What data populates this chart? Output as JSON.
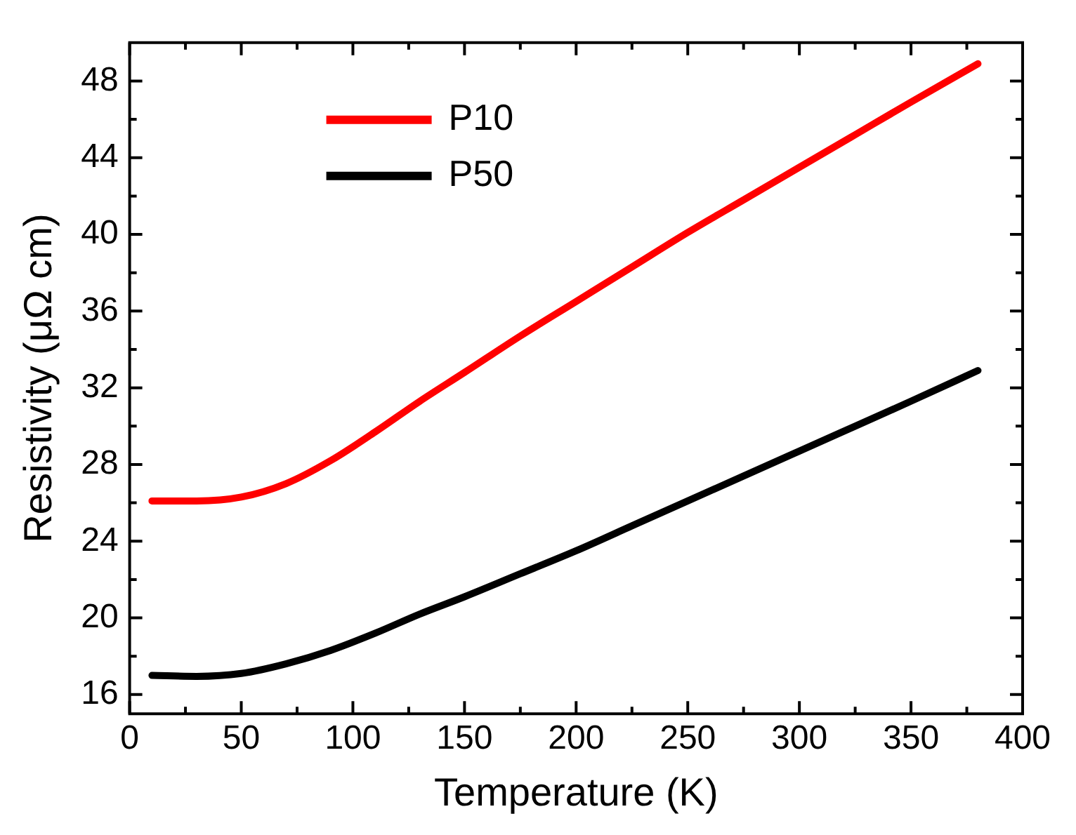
{
  "chart_data": {
    "type": "line",
    "xlabel": "Temperature (K)",
    "ylabel": "Resistivity (μΩ cm)",
    "xlim": [
      0,
      400
    ],
    "xticks": [
      0,
      50,
      100,
      150,
      200,
      250,
      300,
      350,
      400
    ],
    "ylim": [
      15,
      50
    ],
    "yticks": [
      16,
      20,
      24,
      28,
      32,
      36,
      40,
      44,
      48
    ],
    "grid": false,
    "legend": "top left",
    "marker": "none",
    "line_style": "solid",
    "x": [
      10,
      30,
      50,
      70,
      90,
      110,
      130,
      150,
      175,
      200,
      225,
      250,
      275,
      300,
      325,
      350,
      380
    ],
    "series": [
      {
        "name": "P10",
        "color": "#ff0000",
        "values": [
          26.1,
          26.1,
          26.3,
          27.0,
          28.2,
          29.7,
          31.3,
          32.8,
          34.7,
          36.5,
          38.3,
          40.1,
          41.8,
          43.5,
          45.2,
          46.9,
          48.9
        ]
      },
      {
        "name": "P50",
        "color": "#000000",
        "values": [
          17.0,
          16.95,
          17.1,
          17.6,
          18.3,
          19.2,
          20.2,
          21.1,
          22.3,
          23.5,
          24.8,
          26.1,
          27.4,
          28.7,
          30.0,
          31.3,
          32.9
        ]
      }
    ]
  }
}
